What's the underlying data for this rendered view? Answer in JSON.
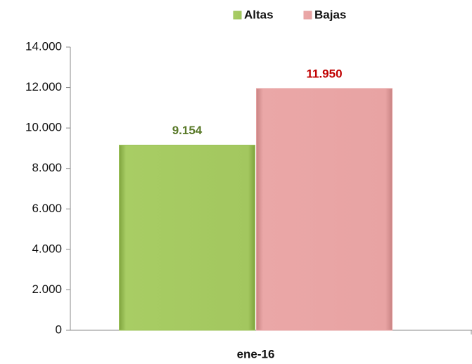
{
  "chart_data": {
    "type": "bar",
    "categories": [
      "ene-16"
    ],
    "series": [
      {
        "name": "Altas",
        "color": "#9dc35a",
        "label_color": "#5a7a2a",
        "values": [
          9154
        ],
        "value_labels": [
          "9.154"
        ]
      },
      {
        "name": "Bajas",
        "color": "#e6a1a1",
        "label_color": "#c00000",
        "values": [
          11950
        ],
        "value_labels": [
          "11.950"
        ]
      }
    ],
    "ylim": [
      0,
      14000
    ],
    "yticks": [
      0,
      {
        "value": 2000,
        "label": "2.000"
      },
      {
        "value": 4000,
        "label": "4.000"
      },
      {
        "value": 6000,
        "label": "6.000"
      },
      {
        "value": 8000,
        "label": "8.000"
      },
      {
        "value": 10000,
        "label": "10.000"
      },
      {
        "value": 12000,
        "label": "12.000"
      },
      {
        "value": 14000,
        "label": "14.000"
      }
    ],
    "legend": "top"
  }
}
